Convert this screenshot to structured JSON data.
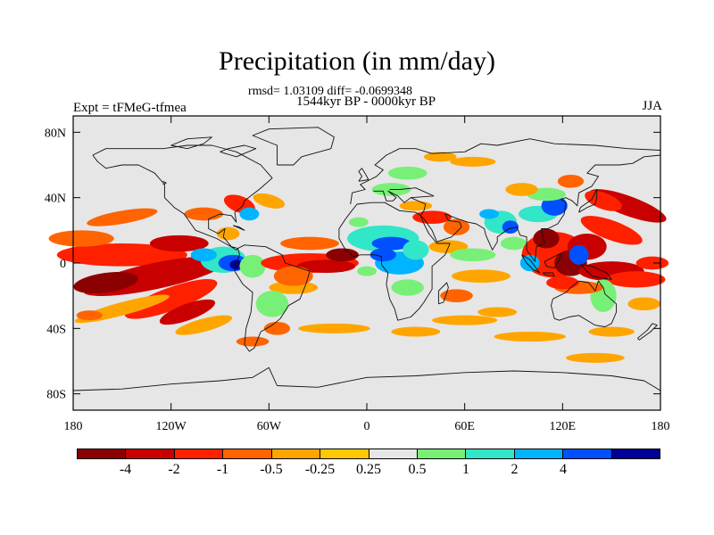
{
  "title": "Precipitation (in mm/day)",
  "subtitle_stats": "rmsd= 1.03109 diff= -0.0699348",
  "subtitle_period": "1544kyr BP - 0000kyr BP",
  "experiment_label": "Expt = tFMeG-tfmea",
  "season_label": "JJA",
  "chart_data": {
    "type": "heatmap",
    "title": "Precipitation (in mm/day)",
    "projection": "cylindrical-equidistant",
    "x_ticks": [
      "180",
      "120W",
      "60W",
      "0",
      "60E",
      "120E",
      "180"
    ],
    "x_tick_values": [
      -180,
      -120,
      -60,
      0,
      60,
      120,
      180
    ],
    "y_ticks": [
      "80N",
      "40N",
      "0",
      "40S",
      "80S"
    ],
    "y_tick_values": [
      80,
      40,
      0,
      -40,
      -80
    ],
    "xlim": [
      -180,
      180
    ],
    "ylim": [
      -90,
      90
    ],
    "levels": [
      -4,
      -2,
      -1,
      -0.5,
      -0.25,
      0.25,
      0.5,
      1,
      2,
      4
    ],
    "level_labels": [
      "-4",
      "-2",
      "-1",
      "-0.5",
      "-0.25",
      "0.25",
      "0.5",
      "1",
      "2",
      "4"
    ],
    "palette": [
      "#8b0000",
      "#c80000",
      "#ff2000",
      "#ff6400",
      "#ffa500",
      "#ffc800",
      "#e6e6e6",
      "#78f078",
      "#32e6c8",
      "#00b4ff",
      "#0050ff",
      "#000096"
    ],
    "missing_color": "#e6e6e6"
  }
}
